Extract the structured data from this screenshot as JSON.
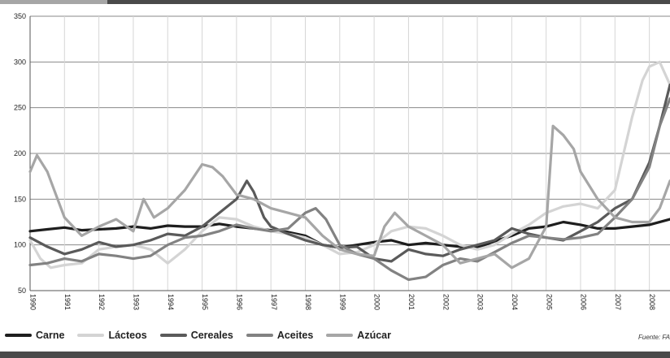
{
  "source_note": "Fuente: FA",
  "chart_data": {
    "type": "line",
    "title": "",
    "xlabel": "",
    "ylabel": "",
    "xlim": [
      1990,
      2008.6
    ],
    "ylim": [
      50,
      350
    ],
    "yticks": [
      50,
      100,
      150,
      200,
      250,
      300,
      350
    ],
    "xticks": [
      1990,
      1991,
      1992,
      1993,
      1994,
      1995,
      1996,
      1997,
      1998,
      1999,
      2000,
      2001,
      2002,
      2003,
      2004,
      2005,
      2006,
      2007,
      2008
    ],
    "xtick_labels": [
      "1990",
      "1991",
      "1992",
      "1993",
      "1994",
      "1995",
      "1996",
      "1997",
      "1998",
      "1999",
      "2000",
      "2001",
      "2002",
      "2003",
      "2004",
      "2005",
      "2006",
      "2007",
      "2008"
    ],
    "grid": "both",
    "legend_position": "bottom",
    "series": [
      {
        "name": "Carne",
        "color": "#1e1e1e",
        "width": 3.2,
        "x": [
          1990,
          1990.5,
          1991,
          1991.5,
          1992,
          1992.5,
          1993,
          1993.5,
          1994,
          1994.5,
          1995,
          1995.5,
          1996,
          1996.5,
          1997,
          1997.5,
          1998,
          1998.5,
          1999,
          1999.5,
          2000,
          2000.5,
          2001,
          2001.5,
          2002,
          2002.5,
          2003,
          2003.5,
          2004,
          2004.5,
          2005,
          2005.5,
          2006,
          2006.5,
          2007,
          2007.5,
          2008,
          2008.6
        ],
        "y": [
          115,
          117,
          119,
          116,
          117,
          118,
          120,
          118,
          121,
          120,
          120,
          123,
          120,
          118,
          116,
          114,
          110,
          100,
          97,
          100,
          103,
          105,
          100,
          102,
          100,
          98,
          97,
          104,
          110,
          118,
          120,
          125,
          122,
          118,
          118,
          120,
          122,
          128
        ]
      },
      {
        "name": "Lácteos",
        "color": "#d4d4d4",
        "width": 3.2,
        "x": [
          1990,
          1990.3,
          1990.6,
          1991,
          1991.5,
          1992,
          1992.5,
          1993,
          1993.5,
          1994,
          1994.5,
          1995,
          1995.5,
          1996,
          1996.5,
          1997,
          1997.5,
          1998,
          1998.5,
          1999,
          1999.5,
          2000,
          2000.5,
          2001,
          2001.5,
          2002,
          2002.5,
          2003,
          2003.5,
          2004,
          2004.5,
          2005,
          2005.5,
          2006,
          2006.5,
          2007,
          2007.5,
          2007.8,
          2008,
          2008.3,
          2008.6
        ],
        "y": [
          105,
          85,
          75,
          78,
          80,
          95,
          98,
          100,
          95,
          80,
          95,
          115,
          130,
          128,
          120,
          115,
          112,
          108,
          100,
          90,
          92,
          100,
          115,
          120,
          118,
          110,
          100,
          95,
          100,
          112,
          122,
          135,
          142,
          145,
          140,
          160,
          240,
          280,
          295,
          300,
          275
        ]
      },
      {
        "name": "Cereales",
        "color": "#5a5a5a",
        "width": 3.2,
        "x": [
          1990,
          1990.5,
          1991,
          1991.5,
          1992,
          1992.5,
          1993,
          1993.5,
          1994,
          1994.5,
          1995,
          1995.5,
          1996,
          1996.3,
          1996.5,
          1996.8,
          1997,
          1997.5,
          1998,
          1998.5,
          1999,
          1999.5,
          2000,
          2000.5,
          2001,
          2001.5,
          2002,
          2002.5,
          2003,
          2003.5,
          2004,
          2004.5,
          2005,
          2005.5,
          2006,
          2006.5,
          2007,
          2007.5,
          2008,
          2008.3,
          2008.6
        ],
        "y": [
          108,
          98,
          90,
          95,
          103,
          98,
          100,
          105,
          112,
          110,
          120,
          135,
          150,
          170,
          158,
          130,
          120,
          112,
          105,
          100,
          97,
          98,
          85,
          82,
          95,
          90,
          88,
          95,
          100,
          105,
          118,
          112,
          108,
          105,
          115,
          125,
          140,
          150,
          190,
          230,
          275
        ]
      },
      {
        "name": "Aceites",
        "color": "#828282",
        "width": 3.2,
        "x": [
          1990,
          1990.5,
          1991,
          1991.5,
          1992,
          1992.5,
          1993,
          1993.5,
          1994,
          1994.5,
          1995,
          1995.5,
          1996,
          1996.5,
          1997,
          1997.5,
          1998,
          1998.3,
          1998.6,
          1999,
          1999.5,
          2000,
          2000.5,
          2001,
          2001.5,
          2002,
          2002.5,
          2003,
          2003.5,
          2004,
          2004.5,
          2005,
          2005.5,
          2006,
          2006.5,
          2007,
          2007.5,
          2008,
          2008.3,
          2008.6
        ],
        "y": [
          78,
          80,
          85,
          82,
          90,
          88,
          85,
          88,
          100,
          108,
          110,
          115,
          122,
          118,
          115,
          118,
          135,
          140,
          128,
          100,
          90,
          85,
          72,
          62,
          65,
          78,
          85,
          82,
          92,
          102,
          110,
          108,
          106,
          108,
          112,
          130,
          150,
          185,
          230,
          260
        ]
      },
      {
        "name": "Azúcar",
        "color": "#a6a6a6",
        "width": 3.2,
        "x": [
          1990,
          1990.2,
          1990.5,
          1991,
          1991.5,
          1992,
          1992.5,
          1993,
          1993.3,
          1993.6,
          1994,
          1994.5,
          1995,
          1995.3,
          1995.6,
          1996,
          1996.5,
          1997,
          1997.5,
          1998,
          1998.5,
          1999,
          1999.5,
          2000,
          2000.3,
          2000.6,
          2001,
          2001.5,
          2002,
          2002.5,
          2003,
          2003.5,
          2004,
          2004.5,
          2005,
          2005.2,
          2005.5,
          2005.8,
          2006,
          2006.5,
          2007,
          2007.5,
          2008,
          2008.3,
          2008.6
        ],
        "y": [
          180,
          198,
          180,
          130,
          110,
          120,
          128,
          115,
          150,
          130,
          140,
          160,
          188,
          185,
          175,
          155,
          150,
          140,
          135,
          130,
          110,
          95,
          90,
          88,
          120,
          135,
          120,
          110,
          100,
          80,
          85,
          90,
          75,
          85,
          120,
          230,
          220,
          205,
          180,
          150,
          130,
          125,
          125,
          140,
          170
        ]
      }
    ]
  }
}
